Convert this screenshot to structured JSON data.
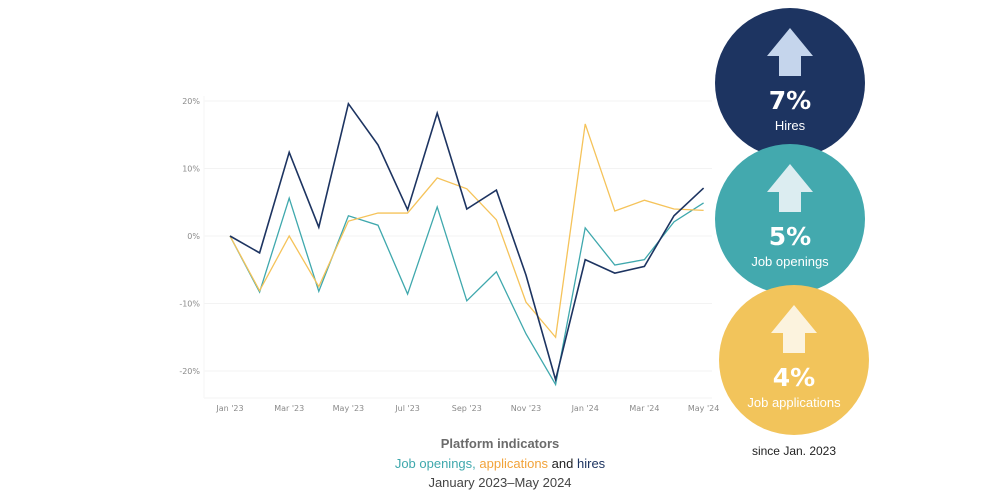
{
  "chart_data": {
    "type": "line",
    "title": "Platform indicators",
    "subtitle": "Job openings, applications and hires",
    "date_range": "January 2023–May 2024",
    "xlabel": "",
    "ylabel": "",
    "ylim": [
      -24,
      20
    ],
    "grid": true,
    "y_ticks": [
      "20%",
      "10%",
      "0%",
      "-10%",
      "-20%"
    ],
    "y_tick_values": [
      20,
      10,
      0,
      -10,
      -20
    ],
    "x_tick_labels": [
      "Jan '23",
      "Mar '23",
      "May '23",
      "Jul '23",
      "Sep '23",
      "Nov '23",
      "Jan '24",
      "Mar '24",
      "May '24"
    ],
    "x": [
      "Jan '23",
      "Feb '23",
      "Mar '23",
      "Apr '23",
      "May '23",
      "Jun '23",
      "Jul '23",
      "Aug '23",
      "Sep '23",
      "Oct '23",
      "Nov '23",
      "Dec '23",
      "Jan '24",
      "Feb '24",
      "Mar '24",
      "Apr '24",
      "May '24"
    ],
    "series": [
      {
        "name": "Job openings",
        "color": "#3fa8ad",
        "values": [
          0,
          -8.3,
          5.6,
          -8.2,
          3.0,
          1.6,
          -8.6,
          4.3,
          -9.6,
          -5.3,
          -14.5,
          -22.0,
          1.2,
          -4.3,
          -3.5,
          2.1,
          4.9
        ]
      },
      {
        "name": "Job applications",
        "color": "#f5c35a",
        "values": [
          0,
          -8.1,
          0,
          -7.5,
          2.2,
          3.4,
          3.4,
          8.6,
          7.0,
          2.4,
          -9.8,
          -15.0,
          16.6,
          3.7,
          5.3,
          4.0,
          3.8
        ]
      },
      {
        "name": "Hires",
        "color": "#1d3461",
        "values": [
          0,
          -2.5,
          12.4,
          1.3,
          19.6,
          13.5,
          3.9,
          18.2,
          4.0,
          6.8,
          -5.8,
          -21.3,
          -3.5,
          -5.5,
          -4.5,
          3.0,
          7.1
        ]
      }
    ],
    "legend_position": "none"
  },
  "caption": {
    "title": "Platform indicators",
    "series_openings": "Job openings,",
    "series_applications": "applications",
    "series_and": "and",
    "series_hires": "hires",
    "range": "January 2023–May 2024"
  },
  "summary": {
    "hires": {
      "value": "7%",
      "label": "Hires",
      "color": "#1d3461",
      "arrow_color": "#c5d5ec"
    },
    "openings": {
      "value": "5%",
      "label": "Job openings",
      "color": "#43a9ae",
      "arrow_color": "#dcedf1"
    },
    "applications": {
      "value": "4%",
      "label": "Job applications",
      "color": "#f2c45b",
      "arrow_color": "#fcf3de"
    },
    "since": "since Jan. 2023"
  }
}
